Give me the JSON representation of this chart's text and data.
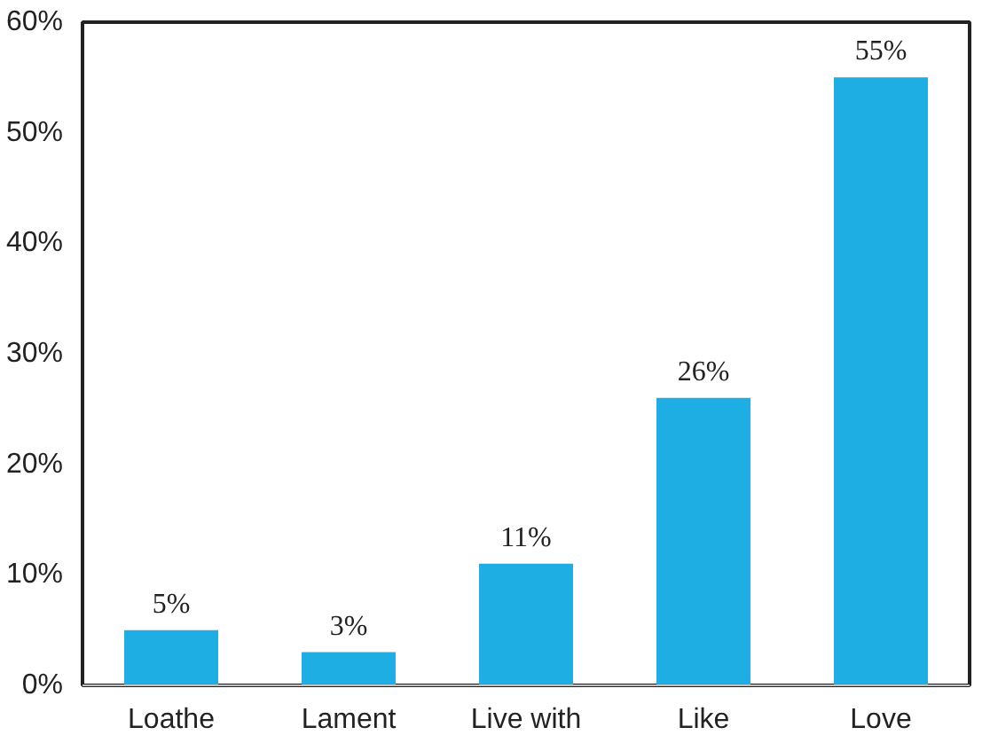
{
  "chart_data": {
    "type": "bar",
    "categories": [
      "Loathe",
      "Lament",
      "Live with",
      "Like",
      "Love"
    ],
    "values": [
      5,
      3,
      11,
      26,
      55
    ],
    "color": "#1eaee4",
    "ylim": [
      0,
      60
    ],
    "yticks": [
      {
        "value": 0,
        "label": "0%"
      },
      {
        "value": 10,
        "label": "10%"
      },
      {
        "value": 20,
        "label": "20%"
      },
      {
        "value": 30,
        "label": "30%"
      },
      {
        "value": 40,
        "label": "40%"
      },
      {
        "value": 50,
        "label": "50%"
      },
      {
        "value": 60,
        "label": "60%"
      }
    ],
    "value_labels": [
      "5%",
      "3%",
      "11%",
      "26%",
      "55%"
    ],
    "grid": false
  }
}
